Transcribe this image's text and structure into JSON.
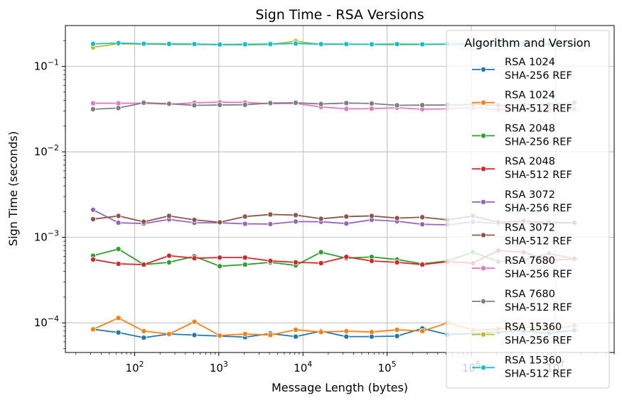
{
  "chart_data": {
    "type": "line",
    "title": "Sign Time - RSA Versions",
    "xlabel": "Message Length (bytes)",
    "ylabel": "Sign Time (seconds)",
    "xscale": "log",
    "yscale": "log",
    "xlim": [
      15,
      50000000
    ],
    "ylim": [
      4.5e-05,
      0.3
    ],
    "xticks": [
      {
        "value": 100,
        "base": "10",
        "exp": "2"
      },
      {
        "value": 1000,
        "base": "10",
        "exp": "3"
      },
      {
        "value": 10000,
        "base": "10",
        "exp": "4"
      },
      {
        "value": 100000,
        "base": "10",
        "exp": "5"
      },
      {
        "value": 1000000,
        "base": "10",
        "exp": "6"
      },
      {
        "value": 10000000,
        "base": "10",
        "exp": "7"
      }
    ],
    "yticks": [
      {
        "value": 0.0001,
        "base": "10",
        "exp": "−4"
      },
      {
        "value": 0.001,
        "base": "10",
        "exp": "−3"
      },
      {
        "value": 0.01,
        "base": "10",
        "exp": "−2"
      },
      {
        "value": 0.1,
        "base": "10",
        "exp": "−1"
      }
    ],
    "grid": true,
    "legend": {
      "title": "Algorithm and Version",
      "placement": "upper-right"
    },
    "x": [
      32,
      64,
      128,
      256,
      512,
      1024,
      2048,
      4096,
      8192,
      16384,
      32768,
      65536,
      131072,
      262144,
      524288,
      1048576,
      2097152,
      4194304,
      8388608,
      16777216
    ],
    "series": [
      {
        "name_lines": [
          "RSA 1024",
          "SHA-256 REF"
        ],
        "color": "#1f77b4",
        "values": [
          8.4e-05,
          7.7e-05,
          6.7e-05,
          7.4e-05,
          7.2e-05,
          7e-05,
          6.8e-05,
          7.5e-05,
          6.9e-05,
          8e-05,
          6.9e-05,
          6.9e-05,
          7e-05,
          8.6e-05,
          7.3e-05,
          7.5e-05,
          7.8e-05,
          8e-05,
          7.6e-05,
          8.2e-05
        ]
      },
      {
        "name_lines": [
          "RSA 1024",
          "SHA-512 REF"
        ],
        "color": "#ff7f0e",
        "values": [
          8.4e-05,
          0.000114,
          8e-05,
          7.4e-05,
          0.000103,
          7.1e-05,
          7.4e-05,
          7.2e-05,
          8.3e-05,
          7.8e-05,
          8e-05,
          7.8e-05,
          8.3e-05,
          8e-05,
          0.0001,
          8.2e-05,
          8.5e-05,
          9e-05,
          8.5e-05,
          9.3e-05
        ]
      },
      {
        "name_lines": [
          "RSA 2048",
          "SHA-256 REF"
        ],
        "color": "#2ca02c",
        "values": [
          0.00061,
          0.00073,
          0.00048,
          0.00051,
          0.0006,
          0.00046,
          0.00048,
          0.00051,
          0.00047,
          0.00067,
          0.00057,
          0.00059,
          0.00055,
          0.00049,
          0.00053,
          0.00067,
          0.00052,
          0.00054,
          0.00065,
          0.00056
        ]
      },
      {
        "name_lines": [
          "RSA 2048",
          "SHA-512 REF"
        ],
        "color": "#d62728",
        "values": [
          0.00055,
          0.00049,
          0.00048,
          0.00061,
          0.00057,
          0.00058,
          0.00058,
          0.00053,
          0.00051,
          0.0005,
          0.00059,
          0.00053,
          0.00051,
          0.00048,
          0.00052,
          0.0005,
          0.0007,
          0.00067,
          0.00054,
          0.00056
        ]
      },
      {
        "name_lines": [
          "RSA 3072",
          "SHA-256 REF"
        ],
        "color": "#9467bd",
        "values": [
          0.0021,
          0.00148,
          0.00145,
          0.00162,
          0.00148,
          0.00148,
          0.00144,
          0.00143,
          0.00153,
          0.00152,
          0.00145,
          0.0016,
          0.00154,
          0.00142,
          0.0014,
          0.00152,
          0.00145,
          0.00148,
          0.00146,
          0.00148
        ]
      },
      {
        "name_lines": [
          "RSA 3072",
          "SHA-512 REF"
        ],
        "color": "#8c564b",
        "values": [
          0.00163,
          0.00178,
          0.00152,
          0.00178,
          0.0016,
          0.0015,
          0.00175,
          0.00185,
          0.00182,
          0.00165,
          0.00175,
          0.00178,
          0.00168,
          0.00172,
          0.0016,
          0.00178,
          0.0015,
          0.00155,
          0.0015,
          0.00148
        ]
      },
      {
        "name_lines": [
          "RSA 7680",
          "SHA-256 REF"
        ],
        "color": "#e377c2",
        "values": [
          0.037,
          0.037,
          0.037,
          0.036,
          0.0375,
          0.038,
          0.0378,
          0.0365,
          0.0368,
          0.0335,
          0.0318,
          0.032,
          0.0328,
          0.0315,
          0.0318,
          0.033,
          0.031,
          0.0315,
          0.0312,
          0.0315
        ]
      },
      {
        "name_lines": [
          "RSA 7680",
          "SHA-512 REF"
        ],
        "color": "#7f7f7f",
        "values": [
          0.0315,
          0.0325,
          0.0375,
          0.0365,
          0.035,
          0.0353,
          0.0355,
          0.0372,
          0.0375,
          0.0363,
          0.0372,
          0.0368,
          0.035,
          0.0352,
          0.0353,
          0.0358,
          0.035,
          0.0355,
          0.036,
          0.0375
        ]
      },
      {
        "name_lines": [
          "RSA 15360",
          "SHA-256 REF"
        ],
        "color": "#bcbd22",
        "values": [
          0.167,
          0.183,
          0.182,
          0.18,
          0.18,
          0.179,
          0.178,
          0.18,
          0.197,
          0.18,
          0.181,
          0.18,
          0.179,
          0.18,
          0.181,
          0.182,
          0.18,
          0.183,
          0.181,
          0.181
        ]
      },
      {
        "name_lines": [
          "RSA 15360",
          "SHA-512 REF"
        ],
        "color": "#17becf",
        "values": [
          0.183,
          0.187,
          0.184,
          0.183,
          0.182,
          0.18,
          0.181,
          0.182,
          0.185,
          0.182,
          0.182,
          0.181,
          0.182,
          0.181,
          0.182,
          0.183,
          0.181,
          0.182,
          0.181,
          0.182
        ]
      }
    ]
  }
}
